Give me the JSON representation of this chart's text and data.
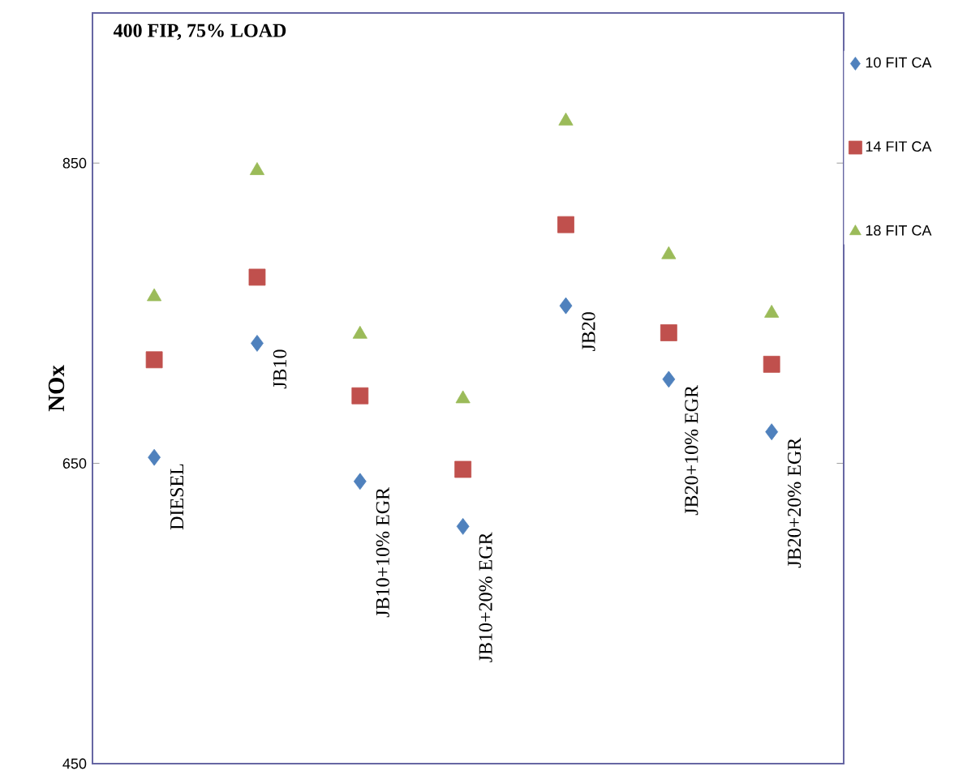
{
  "chart_data": {
    "type": "scatter",
    "title": "400 FIP, 75% LOAD",
    "ylabel": "NOx",
    "categories": [
      "DIESEL",
      "JB10",
      "JB10+10% EGR",
      "JB10+20% EGR",
      "JB20",
      "JB20+10% EGR",
      "JB20+20% EGR"
    ],
    "series": [
      {
        "name": "10 FIT CA",
        "color": "#4f81bd",
        "marker": "diamond",
        "values": [
          654,
          730,
          638,
          608,
          755,
          706,
          671
        ]
      },
      {
        "name": "14 FIT CA",
        "color": "#c0504d",
        "marker": "square",
        "values": [
          719,
          774,
          695,
          646,
          809,
          737,
          716
        ]
      },
      {
        "name": "18 FIT CA",
        "color": "#9bbb59",
        "marker": "triangle",
        "values": [
          761,
          845,
          736,
          693,
          878,
          789,
          750
        ]
      }
    ],
    "ylim": [
      450,
      950
    ],
    "yticks": [
      450,
      650,
      850
    ],
    "legend": "right",
    "grid": false
  }
}
